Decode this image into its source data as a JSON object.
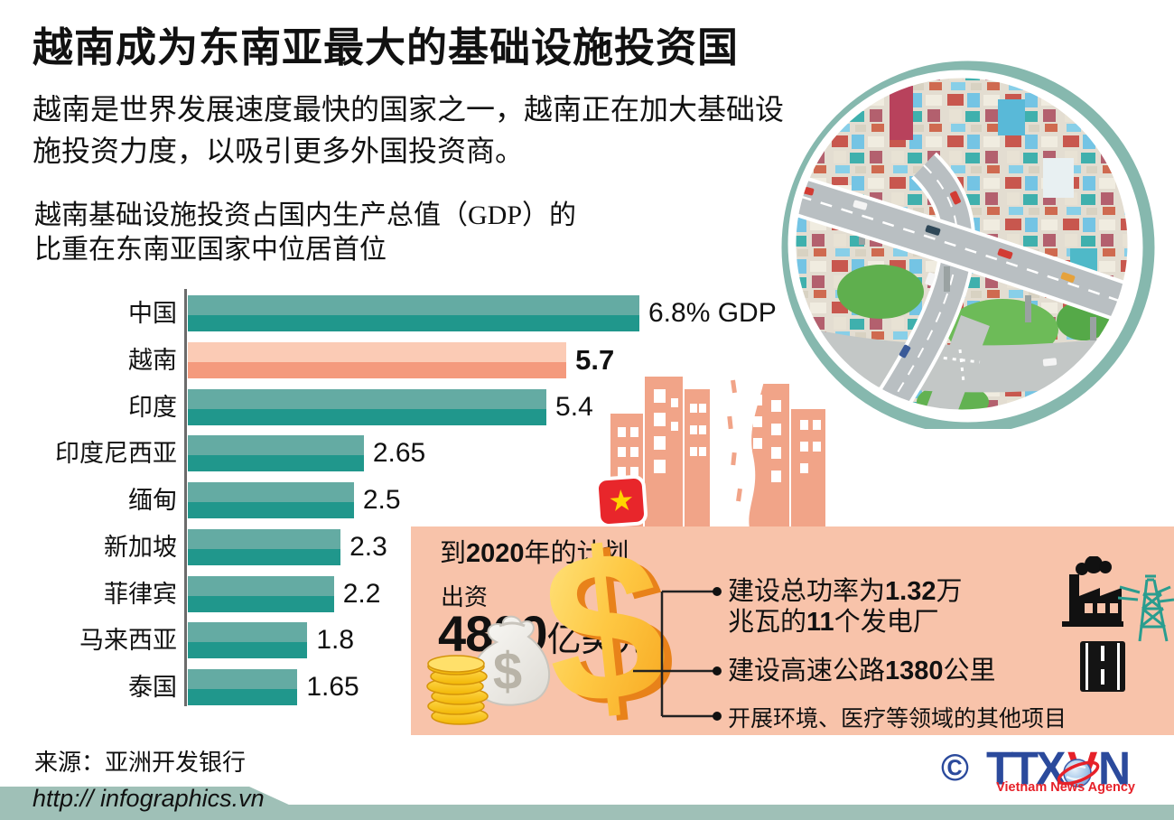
{
  "title": "越南成为东南亚最大的基础设施投资国",
  "intro": {
    "line1": "越南是世界发展速度最快的国家之一，越南正在加大基础设",
    "line2": "施投资力度，以吸引更多外国投资商。"
  },
  "chart_heading": {
    "line1": "越南基础设施投资占国内生产总值（GDP）的",
    "line2": "比重在东南亚国家中位居首位"
  },
  "chart_data": {
    "type": "bar",
    "orientation": "horizontal",
    "title": "越南基础设施投资占国内生产总值（GDP）的比重在东南亚国家中位居首位",
    "categories": [
      "中国",
      "越南",
      "印度",
      "印度尼西亚",
      "缅甸",
      "新加坡",
      "菲律宾",
      "马来西亚",
      "泰国"
    ],
    "values": [
      6.8,
      5.7,
      5.4,
      2.65,
      2.5,
      2.3,
      2.2,
      1.8,
      1.65
    ],
    "value_labels": [
      "6.8% GDP",
      "5.7",
      "5.4",
      "2.65",
      "2.5",
      "2.3",
      "2.2",
      "1.8",
      "1.65"
    ],
    "unit": "% GDP",
    "xlim": [
      0,
      6.8
    ],
    "highlight_index": 1,
    "highlight_category": "越南",
    "grid": false,
    "legend": false,
    "colors": {
      "bar_light": "#64aba3",
      "bar_dark": "#20978c",
      "highlight_light": "#fbcbb5",
      "highlight_dark": "#f49a7d"
    }
  },
  "plan_panel": {
    "heading": {
      "pre": "到",
      "bold": "2020",
      "post": "年的计划"
    },
    "invest_label": "出资",
    "amount": {
      "number": "4800",
      "unit": "亿美元"
    },
    "currency_symbol": "$",
    "bullets": [
      {
        "line1_pre": "建设总功率为",
        "line1_bold": "1.32",
        "line1_post": "万",
        "line2_pre": "兆瓦的",
        "line2_bold": "11",
        "line2_post": "个发电厂"
      },
      {
        "pre": "建设高速公路",
        "bold": "1380",
        "post": "公里"
      },
      {
        "text": "开展环境、医疗等领域的其他项目"
      }
    ],
    "bg_color": "#f8c3aa"
  },
  "source": "来源：亚洲开发银行",
  "footer": {
    "url": "http:// infographics.vn",
    "bg_color": "#9fc0b7"
  },
  "logo": {
    "copyright": "©",
    "letters_ttx": "TTX",
    "letter_v": "V",
    "letter_n": "N",
    "caption": "Vietnam News Agency",
    "blue": "#2b4a9c",
    "red": "#e62129"
  },
  "decor_colors": {
    "buildings_salmon": "#f1a488",
    "ring_teal": "#86b8ae",
    "flag_red": "#e8262b",
    "star_yellow": "#ffd400",
    "gold": "#f6a21b",
    "icon_teal": "#2a9d8f"
  }
}
